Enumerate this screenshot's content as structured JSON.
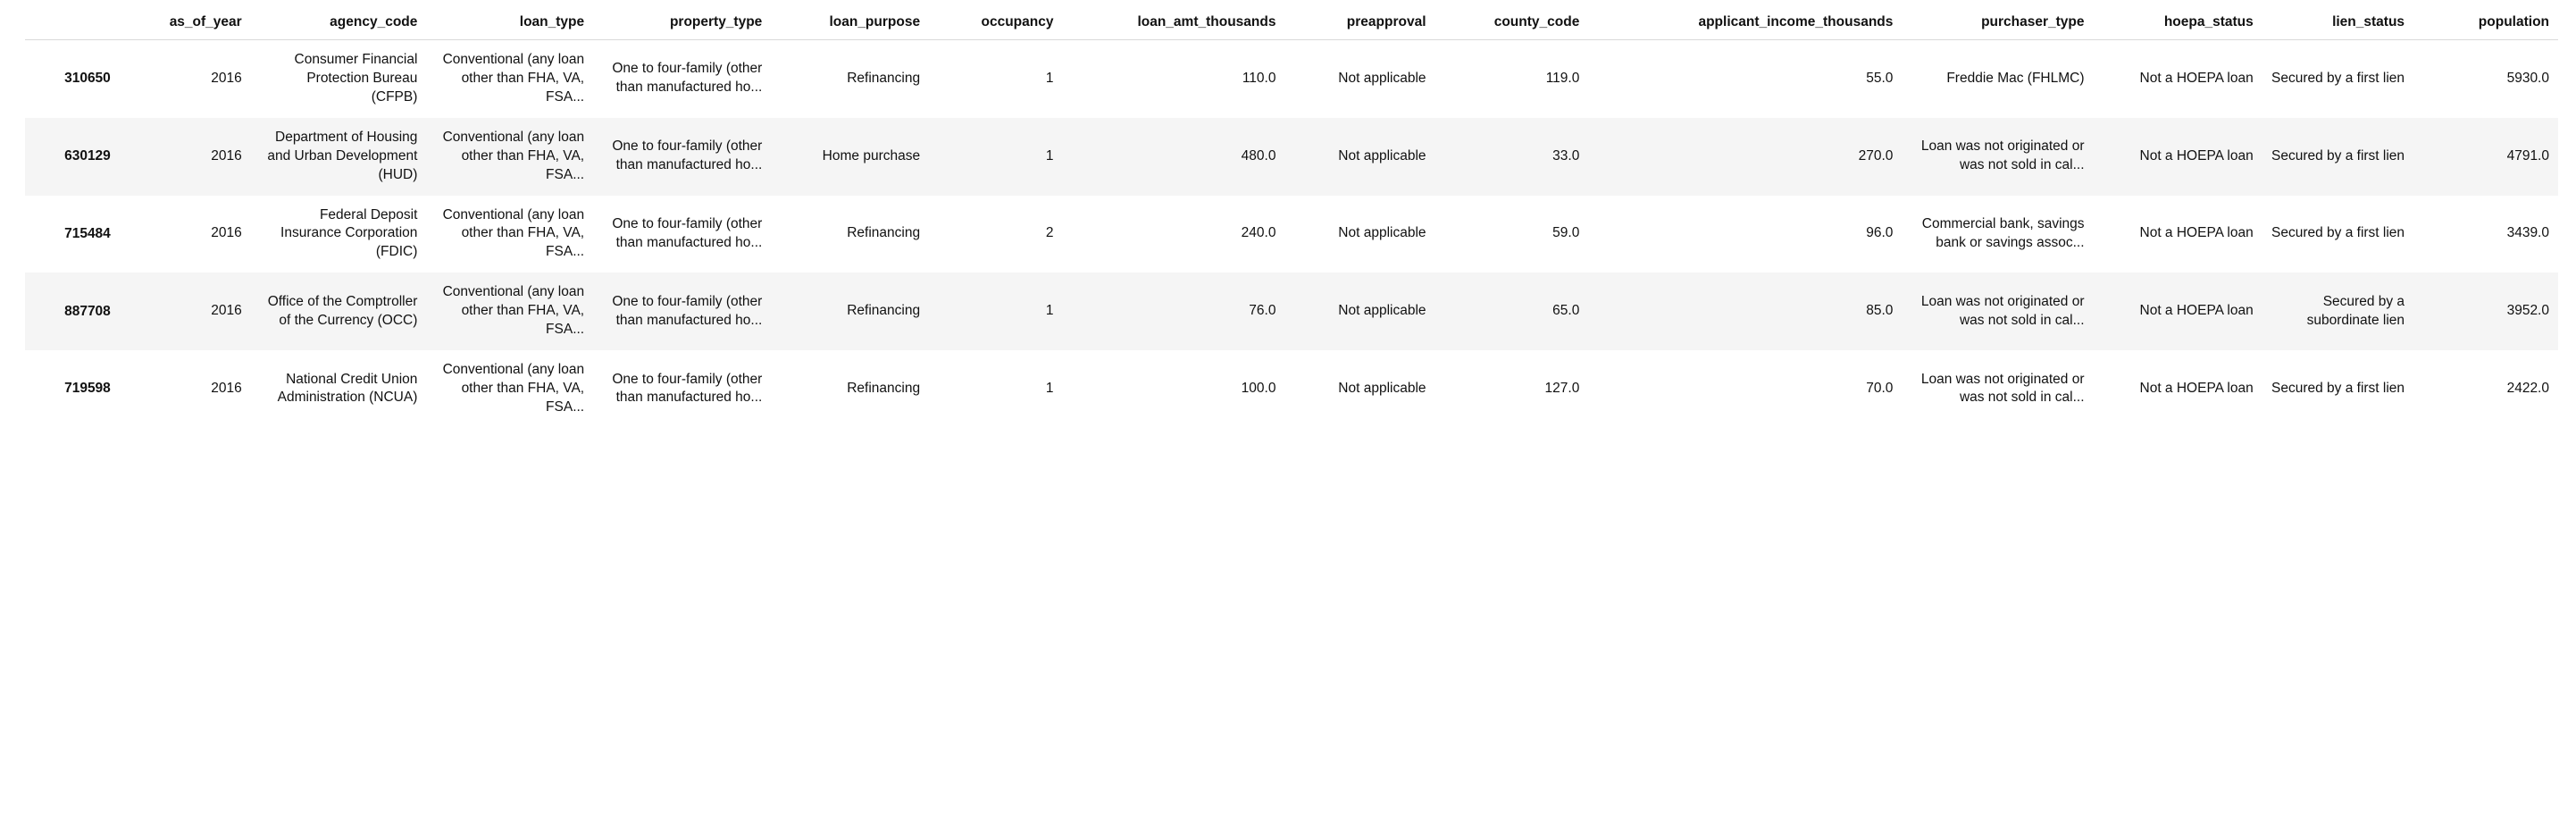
{
  "colors": {
    "background": "#ffffff",
    "zebra": "#f5f5f5",
    "border": "#d9d9d9",
    "text": "#111111"
  },
  "columns": [
    "as_of_year",
    "agency_code",
    "loan_type",
    "property_type",
    "loan_purpose",
    "occupancy",
    "loan_amt_thousands",
    "preapproval",
    "county_code",
    "applicant_income_thousands",
    "purchaser_type",
    "hoepa_status",
    "lien_status",
    "population"
  ],
  "rows": [
    {
      "index": "310650",
      "cells": [
        "2016",
        "Consumer Financial Protection Bureau (CFPB)",
        "Conventional (any loan other than FHA, VA, FSA...",
        "One to four-family (other than manufactured ho...",
        "Refinancing",
        "1",
        "110.0",
        "Not applicable",
        "119.0",
        "55.0",
        "Freddie Mac (FHLMC)",
        "Not a HOEPA loan",
        "Secured by a first lien",
        "5930.0"
      ]
    },
    {
      "index": "630129",
      "cells": [
        "2016",
        "Department of Housing and Urban Development (HUD)",
        "Conventional (any loan other than FHA, VA, FSA...",
        "One to four-family (other than manufactured ho...",
        "Home purchase",
        "1",
        "480.0",
        "Not applicable",
        "33.0",
        "270.0",
        "Loan was not originated or was not sold in cal...",
        "Not a HOEPA loan",
        "Secured by a first lien",
        "4791.0"
      ]
    },
    {
      "index": "715484",
      "cells": [
        "2016",
        "Federal Deposit Insurance Corporation (FDIC)",
        "Conventional (any loan other than FHA, VA, FSA...",
        "One to four-family (other than manufactured ho...",
        "Refinancing",
        "2",
        "240.0",
        "Not applicable",
        "59.0",
        "96.0",
        "Commercial bank, savings bank or savings assoc...",
        "Not a HOEPA loan",
        "Secured by a first lien",
        "3439.0"
      ]
    },
    {
      "index": "887708",
      "cells": [
        "2016",
        "Office of the Comptroller of the Currency (OCC)",
        "Conventional (any loan other than FHA, VA, FSA...",
        "One to four-family (other than manufactured ho...",
        "Refinancing",
        "1",
        "76.0",
        "Not applicable",
        "65.0",
        "85.0",
        "Loan was not originated or was not sold in cal...",
        "Not a HOEPA loan",
        "Secured by a subordinate lien",
        "3952.0"
      ]
    },
    {
      "index": "719598",
      "cells": [
        "2016",
        "National Credit Union Administration (NCUA)",
        "Conventional (any loan other than FHA, VA, FSA...",
        "One to four-family (other than manufactured ho...",
        "Refinancing",
        "1",
        "100.0",
        "Not applicable",
        "127.0",
        "70.0",
        "Loan was not originated or was not sold in cal...",
        "Not a HOEPA loan",
        "Secured by a first lien",
        "2422.0"
      ]
    }
  ]
}
